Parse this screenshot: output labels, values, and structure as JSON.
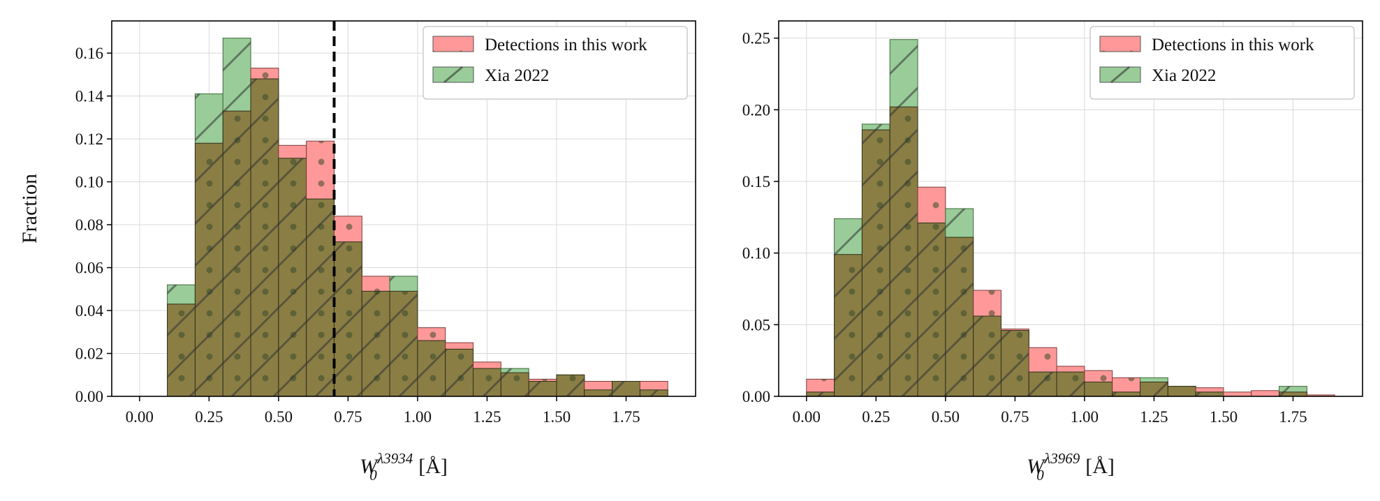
{
  "chart_data": [
    {
      "type": "bar",
      "title": "",
      "xlabel_base": "W",
      "xlabel_sub": "0",
      "xlabel_sup": "λ3934",
      "xlabel_unit": " [Å]",
      "ylabel": "Fraction",
      "xlim": [
        -0.1,
        2.0
      ],
      "ylim": [
        0,
        0.175
      ],
      "xticks": [
        "0.00",
        "0.25",
        "0.50",
        "0.75",
        "1.00",
        "1.25",
        "1.50",
        "1.75"
      ],
      "yticks": [
        "0.00",
        "0.02",
        "0.04",
        "0.06",
        "0.08",
        "0.10",
        "0.12",
        "0.14",
        "0.16"
      ],
      "bin_edges": [
        0.1,
        0.2,
        0.3,
        0.4,
        0.5,
        0.6,
        0.7,
        0.8,
        0.9,
        1.0,
        1.1,
        1.2,
        1.3,
        1.4,
        1.5,
        1.6,
        1.7,
        1.8,
        1.9
      ],
      "series": [
        {
          "name": "Detections in this work",
          "color": "#ff9999",
          "hatch": "dots",
          "values": [
            0.043,
            0.118,
            0.133,
            0.153,
            0.117,
            0.119,
            0.084,
            0.056,
            0.049,
            0.032,
            0.025,
            0.016,
            0.011,
            0.008,
            0.01,
            0.007,
            0.007,
            0.007
          ]
        },
        {
          "name": "Xia 2022",
          "color": "#99cc99",
          "hatch": "diagonal",
          "values": [
            0.052,
            0.141,
            0.167,
            0.148,
            0.111,
            0.092,
            0.072,
            0.049,
            0.056,
            0.026,
            0.022,
            0.013,
            0.013,
            0.007,
            0.01,
            0.003,
            0.007,
            0.003
          ]
        }
      ],
      "vline": {
        "x": 0.7,
        "style": "dashed",
        "color": "#000000"
      },
      "legend": "top-right",
      "grid": true
    },
    {
      "type": "bar",
      "title": "",
      "xlabel_base": "W",
      "xlabel_sub": "0",
      "xlabel_sup": "λ3969",
      "xlabel_unit": " [Å]",
      "ylabel": "",
      "xlim": [
        -0.1,
        2.0
      ],
      "ylim": [
        0,
        0.262
      ],
      "xticks": [
        "0.00",
        "0.25",
        "0.50",
        "0.75",
        "1.00",
        "1.25",
        "1.50",
        "1.75"
      ],
      "yticks": [
        "0.00",
        "0.05",
        "0.10",
        "0.15",
        "0.20",
        "0.25"
      ],
      "bin_edges": [
        0.0,
        0.1,
        0.2,
        0.3,
        0.4,
        0.5,
        0.6,
        0.7,
        0.8,
        0.9,
        1.0,
        1.1,
        1.2,
        1.3,
        1.4,
        1.5,
        1.6,
        1.7,
        1.8,
        1.9
      ],
      "series": [
        {
          "name": "Detections in this work",
          "color": "#ff9999",
          "hatch": "dots",
          "values": [
            0.012,
            0.099,
            0.186,
            0.202,
            0.146,
            0.111,
            0.074,
            0.047,
            0.034,
            0.021,
            0.018,
            0.013,
            0.01,
            0.007,
            0.006,
            0.003,
            0.004,
            0.003,
            0.001
          ]
        },
        {
          "name": "Xia 2022",
          "color": "#99cc99",
          "hatch": "diagonal",
          "values": [
            0.003,
            0.124,
            0.19,
            0.249,
            0.121,
            0.131,
            0.056,
            0.046,
            0.017,
            0.017,
            0.01,
            0.003,
            0.013,
            0.007,
            0.003,
            0.0,
            0.0,
            0.007,
            0.0
          ]
        }
      ],
      "legend": "top-right",
      "grid": true
    }
  ]
}
